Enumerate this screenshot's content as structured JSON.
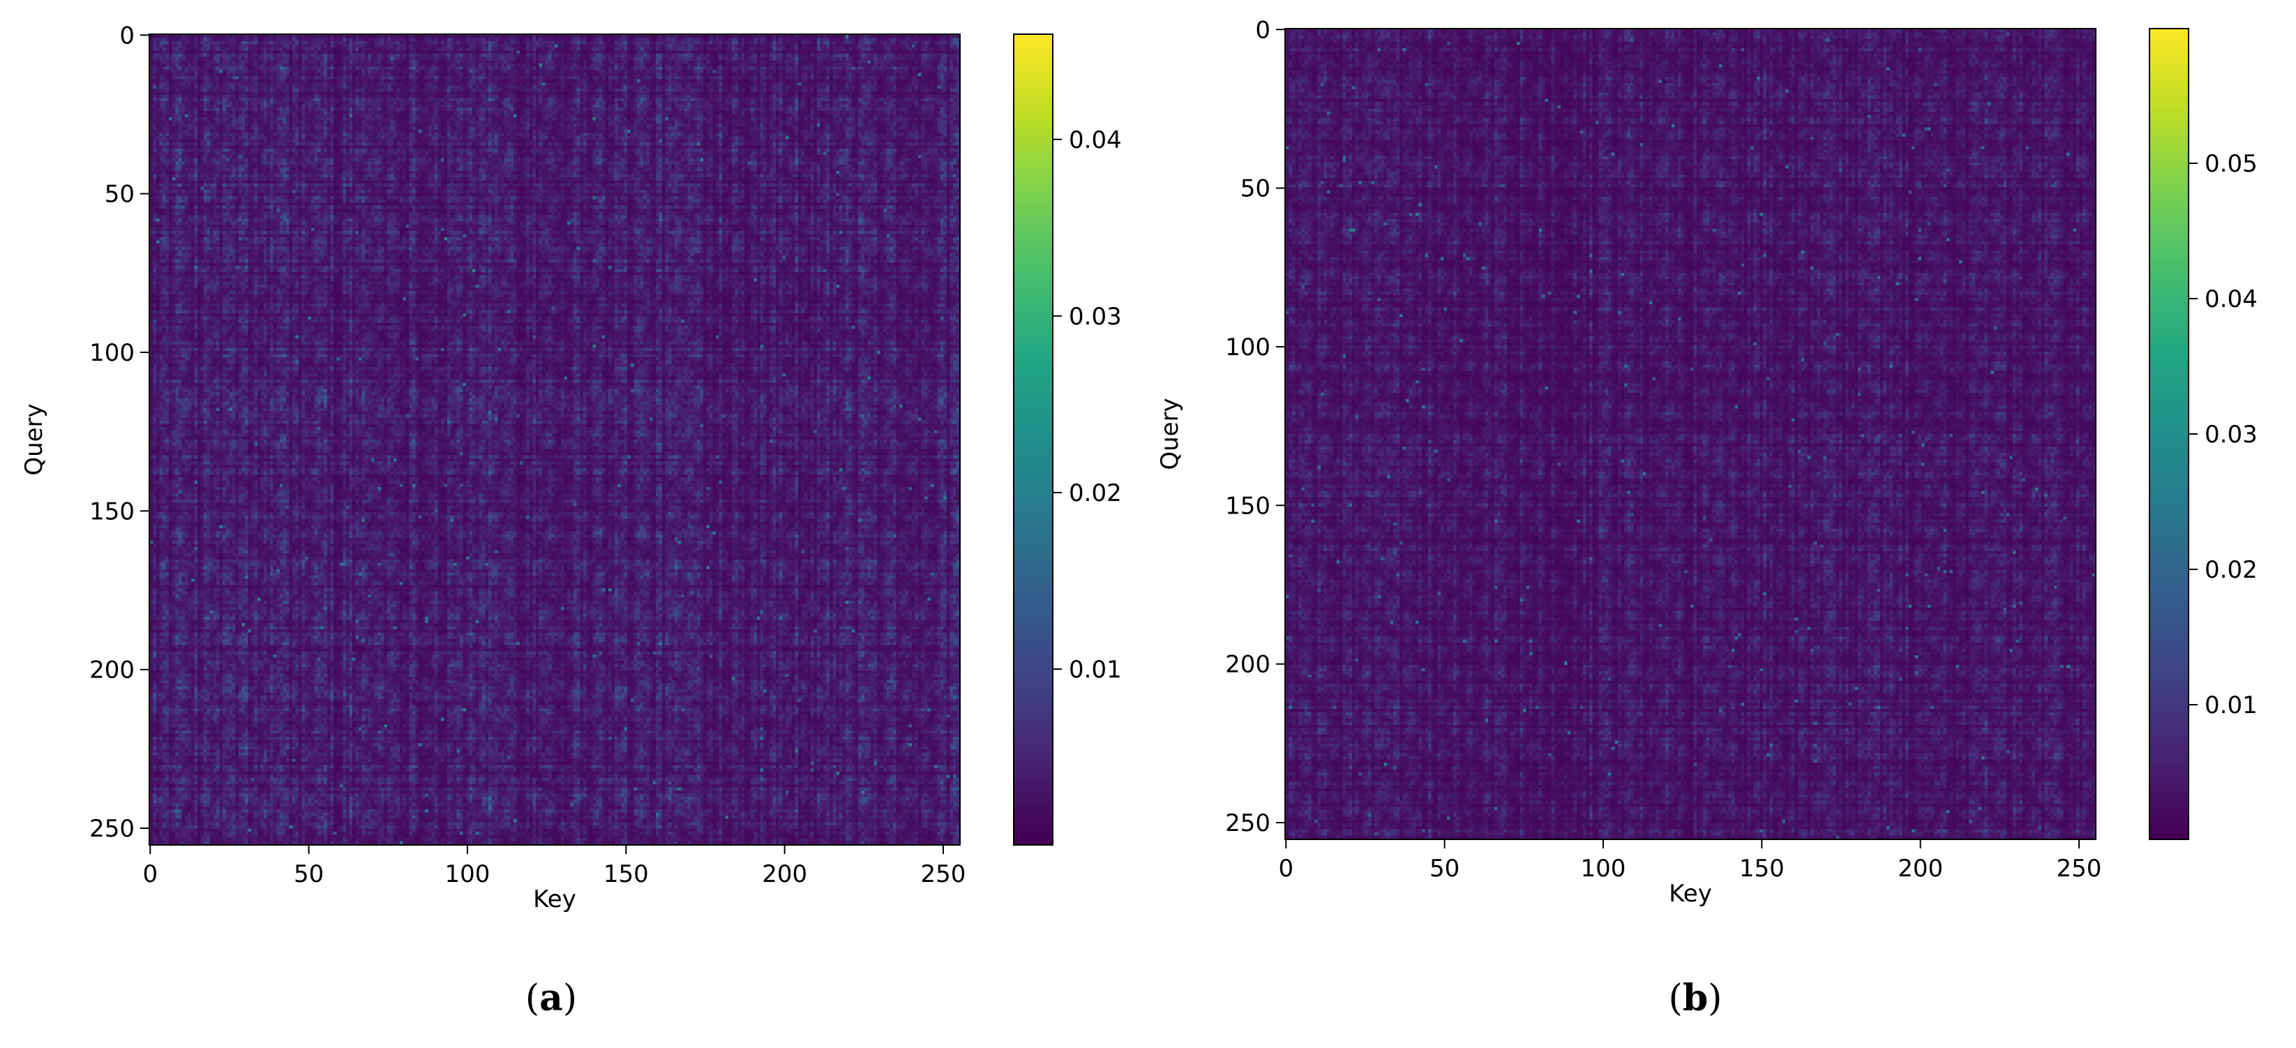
{
  "chart_data": [
    {
      "type": "heatmap",
      "panel_label": "a",
      "xlabel": "Key",
      "ylabel": "Query",
      "xlim": [
        0,
        255
      ],
      "ylim": [
        255,
        0
      ],
      "x_ticks": [
        0,
        50,
        100,
        150,
        200,
        250
      ],
      "y_ticks": [
        0,
        50,
        100,
        150,
        200,
        250
      ],
      "matrix_size": 256,
      "colormap": "viridis",
      "colorbar": {
        "range": [
          0.0,
          0.046
        ],
        "ticks": [
          0.01,
          0.02,
          0.03,
          0.04
        ],
        "tick_labels": [
          "0.01",
          "0.02",
          "0.03",
          "0.04"
        ]
      },
      "value_stats": {
        "typical_min": 0.0,
        "typical_max": 0.012,
        "peak": 0.02
      }
    },
    {
      "type": "heatmap",
      "panel_label": "b",
      "xlabel": "Key",
      "ylabel": "Query",
      "xlim": [
        0,
        255
      ],
      "ylim": [
        255,
        0
      ],
      "x_ticks": [
        0,
        50,
        100,
        150,
        200,
        250
      ],
      "y_ticks": [
        0,
        50,
        100,
        150,
        200,
        250
      ],
      "matrix_size": 256,
      "colormap": "viridis",
      "colorbar": {
        "range": [
          0.0,
          0.06
        ],
        "ticks": [
          0.01,
          0.02,
          0.03,
          0.04,
          0.05
        ],
        "tick_labels": [
          "0.01",
          "0.02",
          "0.03",
          "0.04",
          "0.05"
        ]
      },
      "value_stats": {
        "typical_min": 0.0,
        "typical_max": 0.012,
        "peak": 0.025
      }
    }
  ],
  "captions": [
    {
      "open": "(",
      "letter": "a",
      "close": ")"
    },
    {
      "open": "(",
      "letter": "b",
      "close": ")"
    }
  ]
}
